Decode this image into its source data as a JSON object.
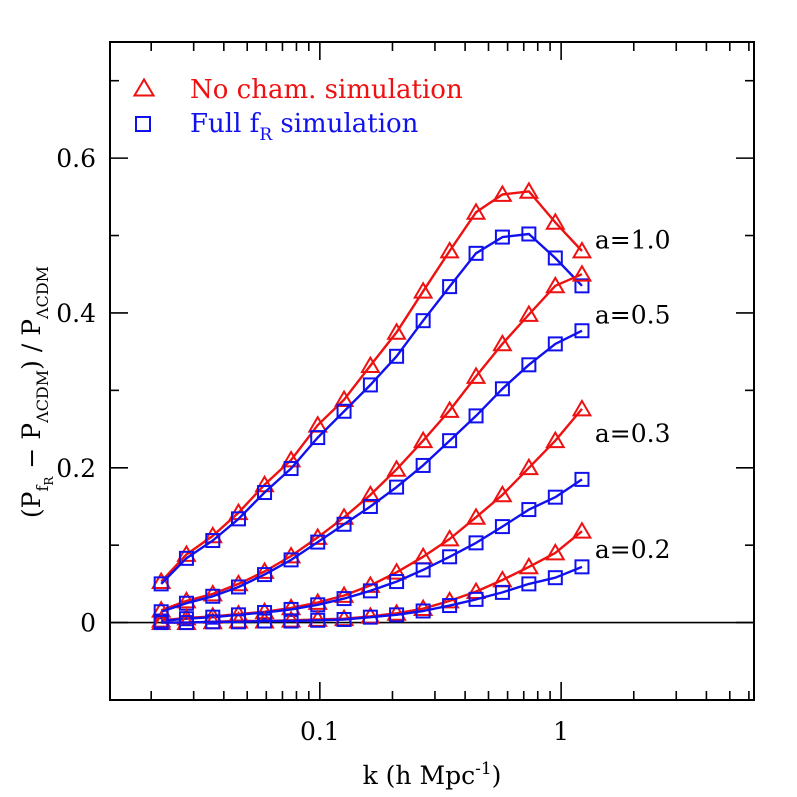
{
  "chart_data": {
    "type": "line",
    "xscale": "log",
    "xlim": [
      0.0135,
      6.3
    ],
    "ylim": [
      -0.1,
      0.75
    ],
    "xlabel": {
      "main": "k  (h  Mpc",
      "sup": "-1",
      "end": ")"
    },
    "ylabel": {
      "p1": "(P",
      "sub1": "f",
      "subsub1": "R",
      "p2": " − P",
      "sub2": "ΛCDM",
      "p3": ")  /  P",
      "sub3": "ΛCDM"
    },
    "x_ticks": [
      {
        "value": 0.1,
        "label": "0.1"
      },
      {
        "value": 1,
        "label": "1"
      }
    ],
    "y_ticks": [
      {
        "value": 0,
        "label": "0"
      },
      {
        "value": 0.2,
        "label": "0.2"
      },
      {
        "value": 0.4,
        "label": "0.4"
      },
      {
        "value": 0.6,
        "label": "0.6"
      }
    ],
    "zero_line": true,
    "legend": {
      "position": "top-left",
      "entries": [
        {
          "marker": "triangle",
          "color": "#ee1111",
          "text": "No cham. simulation",
          "sub": ""
        },
        {
          "marker": "square",
          "color": "#1111ee",
          "text": "Full f",
          "sub": "R",
          "tail": " simulation"
        }
      ]
    },
    "k": [
      0.022,
      0.028,
      0.036,
      0.046,
      0.059,
      0.076,
      0.098,
      0.126,
      0.162,
      0.208,
      0.268,
      0.345,
      0.444,
      0.571,
      0.735,
      0.946,
      1.22
    ],
    "curve_labels": [
      {
        "text": "a=1.0",
        "k": 1.38,
        "y": 0.495
      },
      {
        "text": "a=0.5",
        "k": 1.38,
        "y": 0.398
      },
      {
        "text": "a=0.3",
        "k": 1.38,
        "y": 0.245
      },
      {
        "text": "a=0.2",
        "k": 1.38,
        "y": 0.095
      }
    ],
    "series": [
      {
        "name": "No cham. simulation",
        "epoch": "a=1.0",
        "marker": "triangle",
        "color": "#ee1111",
        "values": [
          0.053,
          0.088,
          0.112,
          0.142,
          0.178,
          0.21,
          0.255,
          0.288,
          0.332,
          0.375,
          0.428,
          0.48,
          0.53,
          0.553,
          0.557,
          0.517,
          0.48
        ]
      },
      {
        "name": "Full fR simulation",
        "epoch": "a=1.0",
        "marker": "square",
        "color": "#1111ee",
        "values": [
          0.05,
          0.083,
          0.106,
          0.134,
          0.168,
          0.199,
          0.239,
          0.273,
          0.307,
          0.344,
          0.39,
          0.434,
          0.477,
          0.498,
          0.502,
          0.471,
          0.435
        ]
      },
      {
        "name": "No cham. simulation",
        "epoch": "a=0.5",
        "marker": "triangle",
        "color": "#ee1111",
        "values": [
          0.016,
          0.028,
          0.037,
          0.05,
          0.066,
          0.086,
          0.11,
          0.136,
          0.165,
          0.198,
          0.235,
          0.274,
          0.318,
          0.36,
          0.398,
          0.435,
          0.45
        ]
      },
      {
        "name": "Full fR simulation",
        "epoch": "a=0.5",
        "marker": "square",
        "color": "#1111ee",
        "values": [
          0.014,
          0.025,
          0.034,
          0.046,
          0.062,
          0.081,
          0.104,
          0.127,
          0.15,
          0.175,
          0.203,
          0.235,
          0.267,
          0.302,
          0.333,
          0.36,
          0.377
        ]
      },
      {
        "name": "No cham. simulation",
        "epoch": "a=0.3",
        "marker": "triangle",
        "color": "#ee1111",
        "values": [
          0.003,
          0.006,
          0.008,
          0.011,
          0.014,
          0.019,
          0.026,
          0.035,
          0.048,
          0.065,
          0.085,
          0.108,
          0.136,
          0.165,
          0.2,
          0.235,
          0.276
        ]
      },
      {
        "name": "Full fR simulation",
        "epoch": "a=0.3",
        "marker": "square",
        "color": "#1111ee",
        "values": [
          0.002,
          0.005,
          0.007,
          0.01,
          0.013,
          0.017,
          0.023,
          0.031,
          0.041,
          0.053,
          0.068,
          0.085,
          0.103,
          0.124,
          0.146,
          0.162,
          0.185
        ]
      },
      {
        "name": "No cham. simulation",
        "epoch": "a=0.2",
        "marker": "triangle",
        "color": "#ee1111",
        "values": [
          0.0,
          0.0,
          0.001,
          0.002,
          0.002,
          0.003,
          0.004,
          0.005,
          0.008,
          0.012,
          0.018,
          0.028,
          0.04,
          0.055,
          0.072,
          0.09,
          0.118
        ]
      },
      {
        "name": "Full fR simulation",
        "epoch": "a=0.2",
        "marker": "square",
        "color": "#1111ee",
        "values": [
          0.0,
          0.0,
          0.001,
          0.001,
          0.002,
          0.002,
          0.003,
          0.004,
          0.007,
          0.01,
          0.015,
          0.022,
          0.03,
          0.039,
          0.05,
          0.058,
          0.072
        ]
      }
    ]
  }
}
